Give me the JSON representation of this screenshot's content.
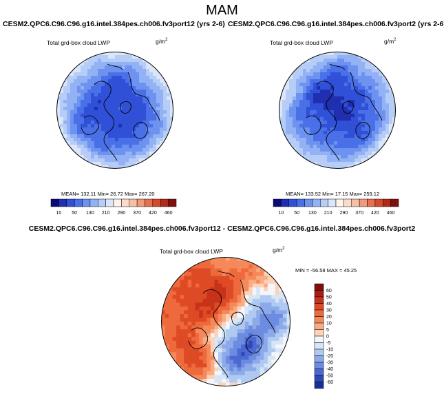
{
  "title": "MAM",
  "panels": {
    "left": {
      "case_name": "CESM2.QPC6.C96.C96.g16.intel.384pes.ch006.fv3port12 (yrs 2-6)",
      "variable": "Total grd-box cloud LWP",
      "units_base": "g/m",
      "units_exp": "2",
      "stats_text": "MEAN= 132.11  Min=  26.72  Max= 267.20"
    },
    "right": {
      "case_name": "CESM2.QPC6.C96.C96.g16.intel.384pes.ch006.fv3port2 (yrs 2-6)",
      "variable": "Total grd-box cloud LWP",
      "units_base": "g/m",
      "units_exp": "2",
      "stats_text": "MEAN= 133.52  Min=  17.15  Max= 259.12"
    },
    "diff": {
      "case_name": "CESM2.QPC6.C96.C96.g16.intel.384pes.ch006.fv3port12 - CESM2.QPC6.C96.C96.g16.intel.384pes.ch006.fv3port2",
      "variable": "Total grd-box cloud LWP",
      "units_base": "g/m",
      "units_exp": "2",
      "stats_text": "MIN = -56.58 MAX =  45.25"
    }
  },
  "chart_data": [
    {
      "type": "heatmap",
      "title": "Total grd-box cloud LWP",
      "projection": "north-polar-stereographic",
      "units": "g/m2",
      "mean": 132.11,
      "min": 26.72,
      "max": 267.2,
      "colorbar": {
        "orientation": "horizontal",
        "tick_labels": [
          "10",
          "50",
          "130",
          "210",
          "290",
          "370",
          "420",
          "460"
        ],
        "colors": [
          "#0a0a7a",
          "#1f2fb0",
          "#3050d8",
          "#4a70e8",
          "#6e92f0",
          "#92b2f5",
          "#b6cdf8",
          "#dbe6fb",
          "#fff4ec",
          "#fbdccb",
          "#f6bfa6",
          "#f09a7a",
          "#e6704f",
          "#d44a2e",
          "#b3291a",
          "#7f1010"
        ]
      },
      "pattern": {
        "pole_value": 35,
        "edge_value": 230,
        "regions": [
          [
            0.0,
            -0.15,
            0.3,
            150
          ],
          [
            0.3,
            0.4,
            0.18,
            60
          ],
          [
            -0.4,
            0.45,
            0.2,
            120
          ]
        ]
      }
    },
    {
      "type": "heatmap",
      "title": "Total grd-box cloud LWP",
      "projection": "north-polar-stereographic",
      "units": "g/m2",
      "mean": 133.52,
      "min": 17.15,
      "max": 259.12,
      "colorbar": {
        "orientation": "horizontal",
        "tick_labels": [
          "10",
          "50",
          "130",
          "210",
          "290",
          "370",
          "420",
          "460"
        ],
        "colors": [
          "#0a0a7a",
          "#1f2fb0",
          "#3050d8",
          "#4a70e8",
          "#6e92f0",
          "#92b2f5",
          "#b6cdf8",
          "#dbe6fb",
          "#fff4ec",
          "#fbdccb",
          "#f6bfa6",
          "#f09a7a",
          "#e6704f",
          "#d44a2e",
          "#b3291a",
          "#7f1010"
        ]
      },
      "pattern": {
        "pole_value": 25,
        "edge_value": 225,
        "regions": [
          [
            -0.1,
            0.2,
            0.35,
            150
          ],
          [
            0.45,
            -0.1,
            0.2,
            90
          ],
          [
            0.0,
            -0.7,
            0.22,
            80
          ]
        ]
      }
    },
    {
      "type": "heatmap",
      "title": "Total grd-box cloud LWP",
      "projection": "north-polar-stereographic",
      "units": "g/m2",
      "min": -56.58,
      "max": 45.25,
      "colorbar": {
        "orientation": "vertical",
        "tick_labels": [
          "60",
          "50",
          "40",
          "30",
          "20",
          "10",
          "5",
          "0",
          "-5",
          "-10",
          "-20",
          "-30",
          "-40",
          "-50",
          "-60"
        ],
        "colors": [
          "#7f1010",
          "#a91e12",
          "#c83218",
          "#de4a25",
          "#ee6a3c",
          "#f5895a",
          "#f9ab82",
          "#fcd2b8",
          "#f4f6fb",
          "#d6e6f7",
          "#b0c9f2",
          "#8caaea",
          "#6d8be0",
          "#4c69d2",
          "#2f48b8",
          "#1c2e96"
        ]
      },
      "pattern": {
        "pole_value": 0,
        "regions": [
          [
            -0.45,
            -0.15,
            0.45,
            40
          ],
          [
            0.1,
            -0.55,
            0.35,
            30
          ],
          [
            0.45,
            -0.1,
            0.35,
            -35
          ],
          [
            -0.05,
            0.3,
            0.3,
            -25
          ],
          [
            0.35,
            0.55,
            0.25,
            -30
          ],
          [
            -0.5,
            0.55,
            0.25,
            25
          ]
        ]
      }
    }
  ]
}
